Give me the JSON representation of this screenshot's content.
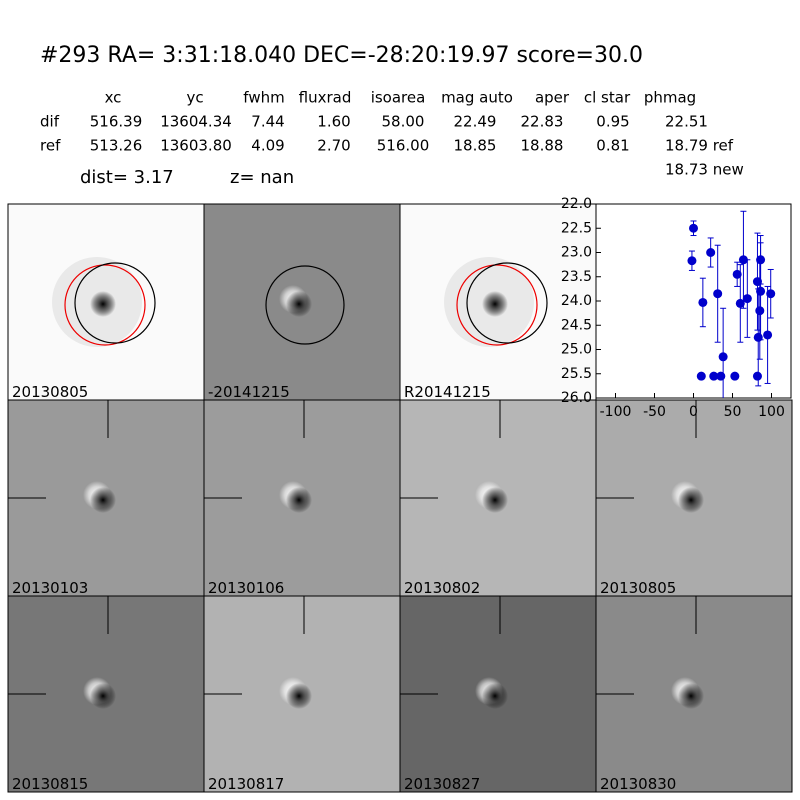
{
  "header": {
    "title": "#293   RA= 3:31:18.040 DEC=-28:20:19.97       score=30.0",
    "columns": [
      "xc",
      "yc",
      "fwhm",
      "fluxrad",
      "isoarea",
      "mag auto",
      "aper",
      "cl star",
      "phmag"
    ],
    "rows": [
      {
        "label": "dif",
        "values": [
          "516.39",
          "13604.34",
          "7.44",
          "1.60",
          "58.00",
          "22.49",
          "22.83",
          "0.95",
          "22.51"
        ]
      },
      {
        "label": "ref",
        "values": [
          "513.26",
          "13603.80",
          "4.09",
          "2.70",
          "516.00",
          "18.85",
          "18.88",
          "0.81",
          "18.79 ref"
        ]
      }
    ],
    "extra": "18.73 new",
    "dist": "dist=  3.17",
    "z": "z=   nan"
  },
  "stamps": [
    {
      "label": "20130805"
    },
    {
      "label": "-20141215"
    },
    {
      "label": "R20141215"
    },
    {
      "label": "20130103"
    },
    {
      "label": "20130106"
    },
    {
      "label": "20130802"
    },
    {
      "label": "20130805",
      "color": "#ff0000"
    },
    {
      "label": "20130815"
    },
    {
      "label": "20130817"
    },
    {
      "label": "20130827"
    },
    {
      "label": "20130830"
    }
  ],
  "lightcurve": {
    "type": "scatter",
    "color": "#0000cc",
    "x": [
      0,
      -2,
      12,
      10,
      22,
      26,
      31,
      38,
      35,
      53,
      56,
      60,
      64,
      69,
      82,
      82,
      83,
      86,
      86,
      85,
      95,
      99
    ],
    "y": [
      22.5,
      23.17,
      24.03,
      25.55,
      23.0,
      25.55,
      23.85,
      25.15,
      25.55,
      25.55,
      23.45,
      24.05,
      23.15,
      23.95,
      25.55,
      23.6,
      24.75,
      23.15,
      23.8,
      24.2,
      24.7,
      23.85
    ],
    "err": [
      0.15,
      0.2,
      0.5,
      0.05,
      0.3,
      0.05,
      1.0,
      1.0,
      0.05,
      0.05,
      0.25,
      0.8,
      1.0,
      0.8,
      0.05,
      1.0,
      1.0,
      0.5,
      1.0,
      1.0,
      1.0,
      0.5
    ],
    "xlim": [
      -125,
      125
    ],
    "ylim": [
      26.0,
      22.0
    ],
    "xticks": [
      -100,
      -50,
      0,
      50,
      100
    ],
    "yticks": [
      {
        "value": 22,
        "label": "22.0"
      },
      22.5,
      {
        "value": 23,
        "label": "23.0"
      },
      23.5,
      {
        "value": 24,
        "label": "24.0"
      },
      24.5,
      {
        "value": 25,
        "label": "25.0"
      },
      25.5,
      {
        "value": 26,
        "label": "26.0"
      }
    ]
  }
}
